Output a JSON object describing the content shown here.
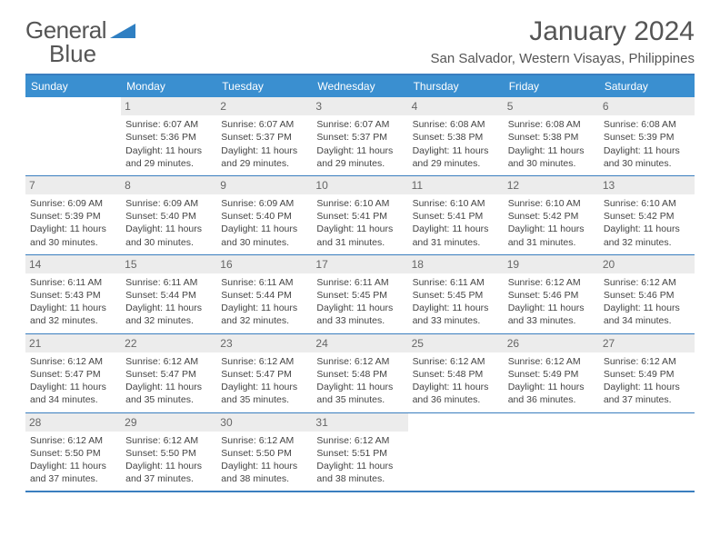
{
  "logo": {
    "word1": "General",
    "word2": "Blue"
  },
  "title": "January 2024",
  "location": "San Salvador, Western Visayas, Philippines",
  "colors": {
    "header_bg": "#3a8fd0",
    "border": "#3a7ebf",
    "daynum_bg": "#ececec",
    "text": "#444444",
    "title_text": "#555555",
    "logo_blue": "#2f7fc2"
  },
  "day_names": [
    "Sunday",
    "Monday",
    "Tuesday",
    "Wednesday",
    "Thursday",
    "Friday",
    "Saturday"
  ],
  "first_weekday_offset": 1,
  "days": [
    {
      "n": 1,
      "sr": "6:07 AM",
      "ss": "5:36 PM",
      "dl": "11 hours and 29 minutes."
    },
    {
      "n": 2,
      "sr": "6:07 AM",
      "ss": "5:37 PM",
      "dl": "11 hours and 29 minutes."
    },
    {
      "n": 3,
      "sr": "6:07 AM",
      "ss": "5:37 PM",
      "dl": "11 hours and 29 minutes."
    },
    {
      "n": 4,
      "sr": "6:08 AM",
      "ss": "5:38 PM",
      "dl": "11 hours and 29 minutes."
    },
    {
      "n": 5,
      "sr": "6:08 AM",
      "ss": "5:38 PM",
      "dl": "11 hours and 30 minutes."
    },
    {
      "n": 6,
      "sr": "6:08 AM",
      "ss": "5:39 PM",
      "dl": "11 hours and 30 minutes."
    },
    {
      "n": 7,
      "sr": "6:09 AM",
      "ss": "5:39 PM",
      "dl": "11 hours and 30 minutes."
    },
    {
      "n": 8,
      "sr": "6:09 AM",
      "ss": "5:40 PM",
      "dl": "11 hours and 30 minutes."
    },
    {
      "n": 9,
      "sr": "6:09 AM",
      "ss": "5:40 PM",
      "dl": "11 hours and 30 minutes."
    },
    {
      "n": 10,
      "sr": "6:10 AM",
      "ss": "5:41 PM",
      "dl": "11 hours and 31 minutes."
    },
    {
      "n": 11,
      "sr": "6:10 AM",
      "ss": "5:41 PM",
      "dl": "11 hours and 31 minutes."
    },
    {
      "n": 12,
      "sr": "6:10 AM",
      "ss": "5:42 PM",
      "dl": "11 hours and 31 minutes."
    },
    {
      "n": 13,
      "sr": "6:10 AM",
      "ss": "5:42 PM",
      "dl": "11 hours and 32 minutes."
    },
    {
      "n": 14,
      "sr": "6:11 AM",
      "ss": "5:43 PM",
      "dl": "11 hours and 32 minutes."
    },
    {
      "n": 15,
      "sr": "6:11 AM",
      "ss": "5:44 PM",
      "dl": "11 hours and 32 minutes."
    },
    {
      "n": 16,
      "sr": "6:11 AM",
      "ss": "5:44 PM",
      "dl": "11 hours and 32 minutes."
    },
    {
      "n": 17,
      "sr": "6:11 AM",
      "ss": "5:45 PM",
      "dl": "11 hours and 33 minutes."
    },
    {
      "n": 18,
      "sr": "6:11 AM",
      "ss": "5:45 PM",
      "dl": "11 hours and 33 minutes."
    },
    {
      "n": 19,
      "sr": "6:12 AM",
      "ss": "5:46 PM",
      "dl": "11 hours and 33 minutes."
    },
    {
      "n": 20,
      "sr": "6:12 AM",
      "ss": "5:46 PM",
      "dl": "11 hours and 34 minutes."
    },
    {
      "n": 21,
      "sr": "6:12 AM",
      "ss": "5:47 PM",
      "dl": "11 hours and 34 minutes."
    },
    {
      "n": 22,
      "sr": "6:12 AM",
      "ss": "5:47 PM",
      "dl": "11 hours and 35 minutes."
    },
    {
      "n": 23,
      "sr": "6:12 AM",
      "ss": "5:47 PM",
      "dl": "11 hours and 35 minutes."
    },
    {
      "n": 24,
      "sr": "6:12 AM",
      "ss": "5:48 PM",
      "dl": "11 hours and 35 minutes."
    },
    {
      "n": 25,
      "sr": "6:12 AM",
      "ss": "5:48 PM",
      "dl": "11 hours and 36 minutes."
    },
    {
      "n": 26,
      "sr": "6:12 AM",
      "ss": "5:49 PM",
      "dl": "11 hours and 36 minutes."
    },
    {
      "n": 27,
      "sr": "6:12 AM",
      "ss": "5:49 PM",
      "dl": "11 hours and 37 minutes."
    },
    {
      "n": 28,
      "sr": "6:12 AM",
      "ss": "5:50 PM",
      "dl": "11 hours and 37 minutes."
    },
    {
      "n": 29,
      "sr": "6:12 AM",
      "ss": "5:50 PM",
      "dl": "11 hours and 37 minutes."
    },
    {
      "n": 30,
      "sr": "6:12 AM",
      "ss": "5:50 PM",
      "dl": "11 hours and 38 minutes."
    },
    {
      "n": 31,
      "sr": "6:12 AM",
      "ss": "5:51 PM",
      "dl": "11 hours and 38 minutes."
    }
  ],
  "labels": {
    "sunrise": "Sunrise:",
    "sunset": "Sunset:",
    "daylight": "Daylight:"
  }
}
